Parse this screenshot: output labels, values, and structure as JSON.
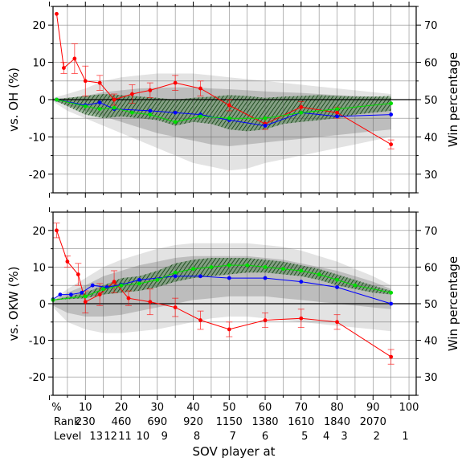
{
  "chart_data": {
    "type": "line",
    "xlabel": "SOV player at",
    "x_ticks": [
      {
        "v": 2,
        "label": "%"
      },
      {
        "v": 10,
        "label": "10"
      },
      {
        "v": 20,
        "label": "20"
      },
      {
        "v": 30,
        "label": "30"
      },
      {
        "v": 40,
        "label": "40"
      },
      {
        "v": 50,
        "label": "50"
      },
      {
        "v": 60,
        "label": "60"
      },
      {
        "v": 70,
        "label": "70"
      },
      {
        "v": 80,
        "label": "80"
      },
      {
        "v": 90,
        "label": "90"
      },
      {
        "v": 100,
        "label": "100"
      }
    ],
    "rank_row": {
      "title": "Rank",
      "labels": [
        {
          "v": 10,
          "label": "230"
        },
        {
          "v": 20,
          "label": "460"
        },
        {
          "v": 30,
          "label": "690"
        },
        {
          "v": 40,
          "label": "920"
        },
        {
          "v": 50,
          "label": "1150"
        },
        {
          "v": 60,
          "label": "1380"
        },
        {
          "v": 70,
          "label": "1610"
        },
        {
          "v": 80,
          "label": "1840"
        },
        {
          "v": 90,
          "label": "2070"
        }
      ]
    },
    "level_row": {
      "title": "Level",
      "labels": [
        {
          "v": 13,
          "label": "13"
        },
        {
          "v": 17,
          "label": "12"
        },
        {
          "v": 21,
          "label": "11"
        },
        {
          "v": 26,
          "label": "10"
        },
        {
          "v": 32,
          "label": "9"
        },
        {
          "v": 41,
          "label": "8"
        },
        {
          "v": 51,
          "label": "7"
        },
        {
          "v": 60,
          "label": "6"
        },
        {
          "v": 71,
          "label": "5"
        },
        {
          "v": 77,
          "label": "4"
        },
        {
          "v": 82,
          "label": "3"
        },
        {
          "v": 91,
          "label": "2"
        },
        {
          "v": 99,
          "label": "1"
        }
      ]
    },
    "xlim": [
      1,
      102
    ],
    "panels": [
      {
        "ylabel": "vs. OH (%)",
        "ylabel_right": "Win percentage",
        "ylim": [
          -25,
          25
        ],
        "yticks_left": [
          -20,
          -10,
          0,
          10,
          20
        ],
        "yticks_right": [
          {
            "v": -20,
            "label": "30"
          },
          {
            "v": -10,
            "label": "40"
          },
          {
            "v": 0,
            "label": "50"
          },
          {
            "v": 10,
            "label": "60"
          },
          {
            "v": 20,
            "label": "70"
          }
        ],
        "band_outer": {
          "x": [
            1,
            5,
            10,
            15,
            20,
            25,
            30,
            35,
            40,
            45,
            50,
            55,
            60,
            65,
            70,
            75,
            80,
            85,
            90,
            95
          ],
          "upper": [
            0.5,
            1.5,
            3,
            5,
            6,
            6.5,
            7,
            7,
            7,
            6.5,
            6,
            5.5,
            5,
            4.5,
            4,
            3.5,
            3,
            2.5,
            2,
            1.5
          ],
          "lower": [
            -0.5,
            -3,
            -5,
            -7,
            -9,
            -11,
            -13,
            -15,
            -17,
            -18,
            -19,
            -18.5,
            -17,
            -16,
            -15,
            -14,
            -13,
            -12,
            -11,
            -10
          ]
        },
        "band_inner": {
          "x": [
            1,
            5,
            10,
            15,
            20,
            25,
            30,
            35,
            40,
            45,
            50,
            55,
            60,
            65,
            70,
            75,
            80,
            85,
            90,
            95
          ],
          "upper": [
            0.3,
            0.5,
            1,
            2,
            2.5,
            3,
            3.2,
            3.3,
            3.3,
            3,
            2.8,
            2.5,
            2.2,
            2,
            1.8,
            1.5,
            1.2,
            1,
            0.8,
            0.5
          ],
          "lower": [
            -0.3,
            -1.5,
            -3,
            -4.5,
            -6,
            -7.5,
            -9,
            -10,
            -11,
            -12,
            -12.5,
            -12,
            -11.5,
            -11,
            -10.5,
            -10,
            -9.5,
            -9,
            -8.5,
            -8
          ]
        },
        "band_hatch": {
          "x": [
            1,
            10,
            15,
            20,
            30,
            35,
            40,
            45,
            50,
            55,
            60,
            65,
            70,
            75,
            80,
            85,
            90,
            95
          ],
          "upper": [
            0,
            1,
            1.5,
            1.2,
            0.5,
            0,
            0.5,
            0.8,
            1.2,
            1,
            0.5,
            0.8,
            1,
            1.2,
            1,
            0.8,
            0.8,
            1
          ],
          "lower": [
            0,
            -4,
            -5,
            -4.5,
            -5.5,
            -7,
            -6,
            -6.5,
            -8,
            -8.5,
            -8,
            -6.5,
            -6,
            -5.5,
            -5,
            -4,
            -3.5,
            -3
          ]
        },
        "series": [
          {
            "color": "#ff0000",
            "x": [
              2,
              4,
              7,
              10,
              14,
              18,
              23,
              28,
              35,
              42,
              50,
              60,
              70,
              80,
              95
            ],
            "y": [
              23,
              8.5,
              11,
              5,
              4.5,
              0,
              1.5,
              2.5,
              4.5,
              3,
              -1.5,
              -6.5,
              -2,
              -3.5,
              -12
            ],
            "err": [
              0,
              1.5,
              4,
              4,
              2,
              1.5,
              2.5,
              2,
              2,
              2,
              1.5,
              1.5,
              1.5,
              1.5,
              1.2
            ]
          },
          {
            "color": "#0000ff",
            "x": [
              2,
              10,
              14,
              18,
              28,
              35,
              42,
              50,
              60,
              70,
              80,
              95
            ],
            "y": [
              0,
              -1.5,
              -0.8,
              -2.5,
              -3,
              -3.5,
              -4,
              -5.5,
              -7,
              -3.5,
              -4.5,
              -4
            ],
            "err": []
          },
          {
            "color": "#00dd00",
            "x": [
              2,
              10,
              14,
              18,
              23,
              28,
              35,
              42,
              50,
              60,
              70,
              80,
              95
            ],
            "y": [
              0,
              -1.8,
              -2.5,
              -2.2,
              -3.5,
              -4,
              -6,
              -4.5,
              -5,
              -5,
              -3.5,
              -2.5,
              -1
            ]
          }
        ]
      },
      {
        "ylabel": "vs. OKW (%)",
        "ylabel_right": "Win percentage",
        "ylim": [
          -25,
          25
        ],
        "yticks_left": [
          -20,
          -10,
          0,
          10,
          20
        ],
        "yticks_right": [
          {
            "v": -20,
            "label": "30"
          },
          {
            "v": -10,
            "label": "40"
          },
          {
            "v": 0,
            "label": "50"
          },
          {
            "v": 10,
            "label": "60"
          },
          {
            "v": 20,
            "label": "70"
          }
        ],
        "band_outer": {
          "x": [
            1,
            5,
            10,
            15,
            20,
            25,
            30,
            35,
            40,
            45,
            50,
            55,
            60,
            65,
            70,
            75,
            80,
            85,
            90,
            95
          ],
          "upper": [
            1,
            4,
            7,
            10,
            12,
            13.5,
            15,
            16,
            16.5,
            16.5,
            16.5,
            16.5,
            16,
            15.5,
            14.5,
            13,
            11.5,
            9.5,
            7.5,
            5
          ],
          "lower": [
            -1,
            -5,
            -7,
            -8,
            -8,
            -7.5,
            -7,
            -6,
            -5,
            -4,
            -3.5,
            -3.5,
            -4,
            -4.5,
            -5,
            -5.5,
            -6,
            -6.5,
            -7,
            -7.5
          ]
        },
        "band_inner": {
          "x": [
            1,
            5,
            10,
            15,
            20,
            25,
            30,
            35,
            40,
            45,
            50,
            55,
            60,
            65,
            70,
            75,
            80,
            85,
            90,
            95
          ],
          "upper": [
            0.8,
            3,
            5,
            7.5,
            9,
            10.5,
            11.5,
            12.5,
            13,
            13,
            13,
            13,
            12.5,
            12,
            11,
            10,
            9,
            7.5,
            6,
            4
          ],
          "lower": [
            -0.5,
            -2.5,
            -3.5,
            -3.5,
            -3,
            -2,
            -1,
            0,
            1,
            1.5,
            2,
            2,
            2,
            1.5,
            1,
            0.5,
            0,
            -0.5,
            -1,
            -1.5
          ]
        },
        "band_hatch": {
          "x": [
            1,
            10,
            15,
            20,
            25,
            30,
            35,
            40,
            45,
            50,
            55,
            60,
            65,
            70,
            75,
            80,
            85,
            90,
            95
          ],
          "upper": [
            1,
            3,
            5,
            7,
            7.5,
            9,
            11,
            12,
            12.5,
            12.5,
            12.5,
            12,
            11.5,
            10.5,
            9.5,
            8,
            6.5,
            5,
            3.5
          ],
          "lower": [
            1,
            1.5,
            2.5,
            3,
            3.5,
            4.5,
            6,
            7,
            7.5,
            8,
            8.5,
            8.5,
            8,
            7.5,
            6.5,
            5,
            4,
            3,
            2.5
          ]
        },
        "series": [
          {
            "color": "#ff0000",
            "x": [
              2,
              5,
              8,
              10,
              14,
              18,
              22,
              28,
              35,
              42,
              50,
              60,
              70,
              80,
              95
            ],
            "y": [
              20,
              11.5,
              8,
              0.5,
              2.5,
              6,
              1.5,
              0.5,
              -1,
              -4.5,
              -7,
              -4.5,
              -4,
              -5,
              -14.5
            ],
            "err": [
              2,
              1.5,
              3,
              3,
              3,
              3,
              2,
              3.5,
              2.5,
              2.5,
              2,
              2,
              2.5,
              2,
              2
            ]
          },
          {
            "color": "#0000ff",
            "x": [
              1,
              3,
              6,
              9,
              12,
              16,
              20,
              25,
              35,
              42,
              50,
              60,
              70,
              80,
              95
            ],
            "y": [
              1.2,
              2.5,
              2.5,
              3,
              5,
              4.5,
              5.2,
              6.5,
              7.5,
              7.5,
              7,
              7,
              6,
              4.5,
              0
            ],
            "err": []
          },
          {
            "color": "#00dd00",
            "x": [
              1,
              10,
              15,
              20,
              25,
              30,
              35,
              40,
              45,
              50,
              55,
              60,
              65,
              70,
              75,
              80,
              85,
              95
            ],
            "y": [
              1,
              2,
              4,
              5,
              5.5,
              6.5,
              8.5,
              9.5,
              10,
              10.5,
              10.5,
              10,
              9.5,
              9,
              8,
              6.5,
              5,
              3
            ]
          }
        ]
      }
    ]
  }
}
